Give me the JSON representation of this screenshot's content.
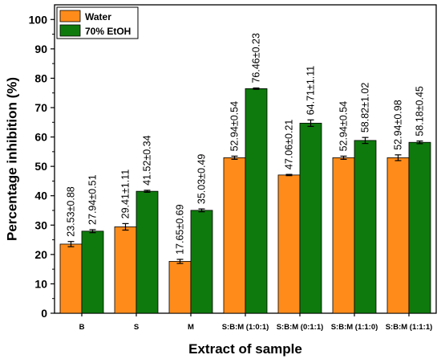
{
  "chart_data": {
    "type": "bar",
    "xlabel": "Extract of sample",
    "ylabel": "Percentage inhibition (%)",
    "ylim": [
      0,
      105
    ],
    "yticks": [
      "0",
      "10",
      "20",
      "30",
      "40",
      "50",
      "60",
      "70",
      "80",
      "90",
      "100"
    ],
    "categories": [
      "B",
      "S",
      "M",
      "S:B:M (1:0:1)",
      "S:B:M (0:1:1)",
      "S:B:M (1:1:0)",
      "S:B:M (1:1:1)"
    ],
    "series": [
      {
        "name": "Water",
        "color": "#ff8c1a",
        "values": [
          23.53,
          29.41,
          17.65,
          52.94,
          47.06,
          52.94,
          52.94
        ],
        "errors": [
          0.88,
          1.11,
          0.69,
          0.54,
          0.21,
          0.54,
          0.98
        ],
        "labels": [
          "23.53±0.88",
          "29.41±1.11",
          "17.65±0.69",
          "52.94±0.54",
          "47.06±0.21",
          "52.94±0.54",
          "52.94±0.98"
        ]
      },
      {
        "name": "70% EtOH",
        "color": "#0e7a0d",
        "values": [
          27.94,
          41.52,
          35.03,
          76.46,
          64.71,
          58.82,
          58.18
        ],
        "errors": [
          0.51,
          0.34,
          0.49,
          0.23,
          1.11,
          1.02,
          0.45
        ],
        "labels": [
          "27.94±0.51",
          "41.52±0.34",
          "35.03±0.49",
          "76.46±0.23",
          "64.71±1.11",
          "58.82±1.02",
          "58.18±0.45"
        ]
      }
    ],
    "legend": "top-left",
    "grid": false
  }
}
